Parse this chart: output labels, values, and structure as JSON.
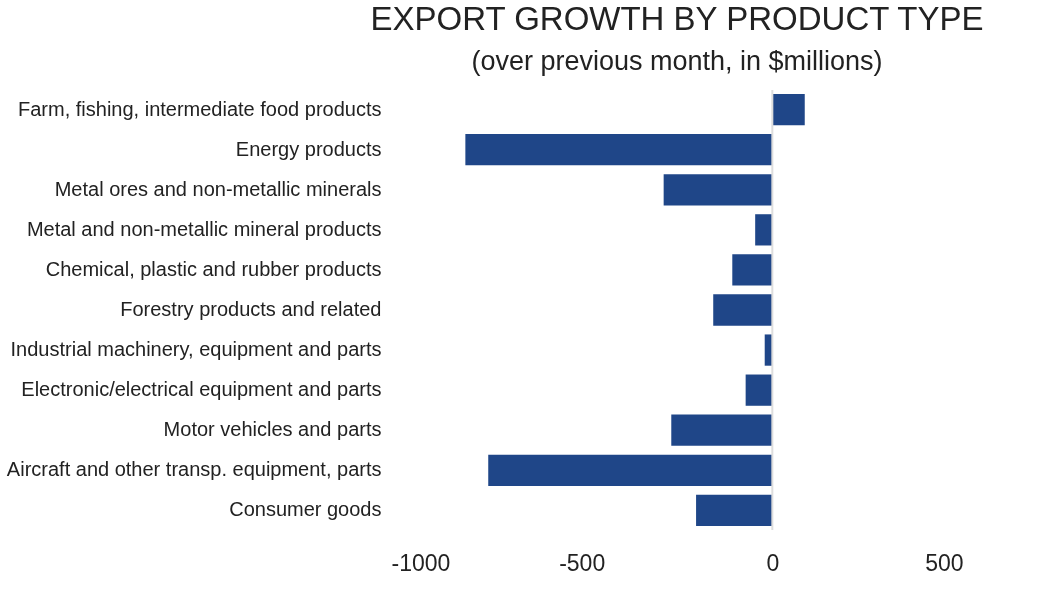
{
  "chart_data": {
    "type": "bar",
    "orientation": "horizontal",
    "title": "EXPORT GROWTH BY PRODUCT TYPE",
    "subtitle": "(over previous month, in $millions)",
    "categories": [
      "Farm, fishing, intermediate food products",
      "Energy products",
      "Metal ores and non-metallic minerals",
      "Metal and non-metallic mineral products",
      "Chemical, plastic and rubber products",
      "Forestry products and related",
      "Industrial machinery, equipment and parts",
      "Electronic/electrical equipment and parts",
      "Motor vehicles and parts",
      "Aircraft and other transp. equipment, parts",
      "Consumer goods"
    ],
    "values": [
      85,
      -805,
      -285,
      -45,
      -105,
      -155,
      -20,
      -70,
      -265,
      -745,
      -200
    ],
    "color": "#1f4688",
    "xlim": [
      -1000,
      500
    ],
    "xticks": [
      -1000,
      -500,
      0,
      500
    ],
    "ref_lines": [
      {
        "axis": "x",
        "value": 0,
        "color": "#dddddd"
      }
    ],
    "grid": false
  }
}
